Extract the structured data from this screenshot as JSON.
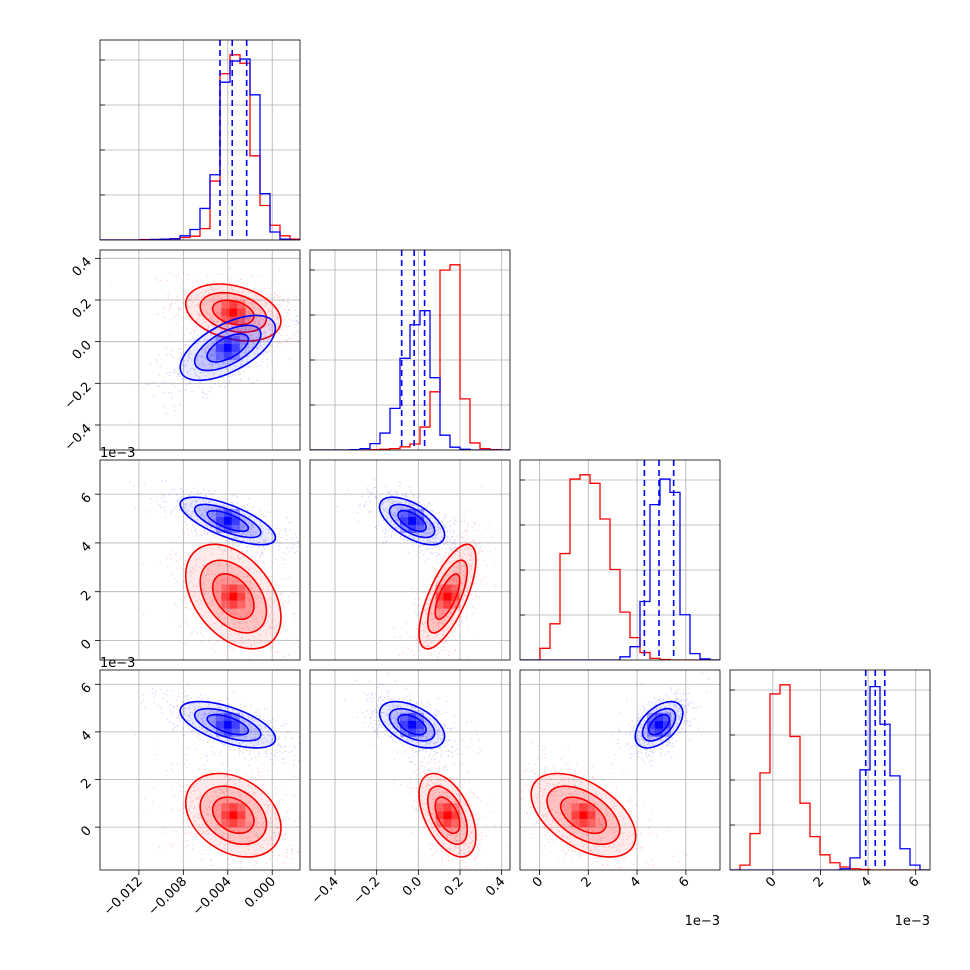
{
  "chart_data": {
    "type": "corner",
    "parameters": 4,
    "series": [
      {
        "color": "#ff0000"
      },
      {
        "color": "#0000ff"
      }
    ],
    "quantiles": {
      "color": "#0000ff",
      "p0": [
        -0.0047,
        -0.0036,
        -0.0023
      ],
      "p1": [
        -0.08,
        -0.02,
        0.03
      ],
      "p2": [
        0.0043,
        0.0049,
        0.0055
      ],
      "p3": [
        0.0039,
        0.0043,
        0.0047
      ]
    },
    "axes": {
      "p0": {
        "range": [
          -0.0155,
          0.0025
        ],
        "ticks": [
          -0.012,
          -0.008,
          -0.004,
          0.0
        ],
        "tick_labels": [
          "−0.012",
          "−0.008",
          "−0.004",
          "0.000"
        ]
      },
      "p1": {
        "range": [
          -0.52,
          0.44
        ],
        "ticks": [
          -0.4,
          -0.2,
          0.0,
          0.2,
          0.4
        ],
        "tick_labels": [
          "−0.4",
          "−0.2",
          "0.0",
          "0.2",
          "0.4"
        ]
      },
      "p2": {
        "range": [
          -0.0008,
          0.0074
        ],
        "ticks": [
          0,
          0.002,
          0.004,
          0.006
        ],
        "tick_labels": [
          "0",
          "2",
          "4",
          "6"
        ],
        "offset_label": "1e−3"
      },
      "p3": {
        "range": [
          -0.0018,
          0.0066
        ],
        "ticks": [
          0,
          0.002,
          0.004,
          0.006
        ],
        "tick_labels": [
          "0",
          "2",
          "4",
          "6"
        ],
        "offset_label": "1e−3"
      }
    },
    "row_offset_labels": {
      "2": "1e−3",
      "3": "1e−3"
    },
    "grid": true,
    "histograms": {
      "p0": {
        "bins": [
          -0.0155,
          -0.0146,
          -0.0137,
          -0.0128,
          -0.0119,
          -0.011,
          -0.0101,
          -0.0092,
          -0.0083,
          -0.0074,
          -0.0065,
          -0.0056,
          -0.0047,
          -0.0038,
          -0.0029,
          -0.002,
          -0.0011,
          -0.0002,
          0.0007,
          0.0016,
          0.0025
        ],
        "red": [
          0,
          0,
          0,
          0,
          1,
          1,
          2,
          3,
          6,
          9,
          27,
          140,
          395,
          440,
          420,
          200,
          82,
          35,
          10,
          2
        ],
        "blue": [
          0,
          0,
          0,
          0,
          0,
          1,
          2,
          3,
          10,
          25,
          75,
          155,
          375,
          425,
          430,
          345,
          110,
          19,
          2,
          0
        ]
      },
      "p1": {
        "bins": [
          -0.52,
          -0.472,
          -0.424,
          -0.376,
          -0.328,
          -0.28,
          -0.232,
          -0.184,
          -0.136,
          -0.088,
          -0.04,
          0.008,
          0.056,
          0.104,
          0.152,
          0.2,
          0.248,
          0.296,
          0.344,
          0.392,
          0.44
        ],
        "red": [
          0,
          0,
          0,
          0,
          0,
          0,
          1,
          2,
          4,
          9,
          17,
          65,
          165,
          510,
          525,
          145,
          20,
          4,
          1,
          0
        ],
        "blue": [
          0,
          0,
          0,
          0,
          1,
          4,
          18,
          48,
          118,
          260,
          355,
          395,
          205,
          42,
          8,
          2,
          0,
          0,
          0,
          0
        ]
      },
      "p2": {
        "bins": [
          -0.0008,
          -0.00039,
          2e-05,
          0.00043,
          0.00084,
          0.00125,
          0.00166,
          0.00207,
          0.00248,
          0.00289,
          0.0033,
          0.00371,
          0.00412,
          0.00453,
          0.00494,
          0.00535,
          0.00576,
          0.00617,
          0.00658,
          0.00699,
          0.0074
        ],
        "red": [
          0,
          0,
          22,
          68,
          200,
          340,
          348,
          332,
          265,
          170,
          90,
          42,
          14,
          3,
          1,
          0,
          0,
          0,
          0,
          0
        ],
        "blue": [
          0,
          0,
          0,
          0,
          0,
          0,
          0,
          0,
          0,
          0,
          6,
          25,
          110,
          292,
          340,
          315,
          85,
          12,
          2,
          0
        ]
      },
      "p3": {
        "bins": [
          -0.0018,
          -0.00138,
          -0.00096,
          -0.00054,
          -0.00012,
          0.0003,
          0.00072,
          0.00114,
          0.00156,
          0.00198,
          0.0024,
          0.00282,
          0.00324,
          0.00366,
          0.00408,
          0.0045,
          0.00492,
          0.00534,
          0.00576,
          0.00618,
          0.0066
        ],
        "red": [
          0,
          8,
          60,
          160,
          290,
          305,
          220,
          110,
          55,
          25,
          12,
          5,
          2,
          1,
          0,
          0,
          0,
          0,
          0,
          0
        ],
        "blue": [
          0,
          0,
          0,
          0,
          0,
          0,
          0,
          0,
          0,
          0,
          0,
          2,
          20,
          165,
          302,
          240,
          155,
          35,
          8,
          0
        ]
      }
    },
    "distributions": {
      "red": {
        "mean": [
          -0.0035,
          0.14,
          0.0018,
          0.0005
        ],
        "sd": [
          0.0022,
          0.07,
          0.0011,
          0.0009
        ],
        "corr": [
          [
            0,
            1,
            -0.3
          ],
          [
            0,
            2,
            -0.4
          ],
          [
            0,
            3,
            -0.3
          ],
          [
            1,
            2,
            0.7
          ],
          [
            1,
            3,
            -0.5
          ],
          [
            2,
            3,
            -0.5
          ]
        ]
      },
      "blue": {
        "mean": [
          -0.004,
          -0.03,
          0.0049,
          0.0043
        ],
        "sd": [
          0.0022,
          0.08,
          0.0005,
          0.0005
        ],
        "corr": [
          [
            0,
            1,
            0.6
          ],
          [
            0,
            2,
            -0.7
          ],
          [
            0,
            3,
            -0.6
          ],
          [
            1,
            2,
            -0.6
          ],
          [
            1,
            3,
            -0.5
          ],
          [
            2,
            3,
            0.5
          ]
        ]
      }
    }
  }
}
